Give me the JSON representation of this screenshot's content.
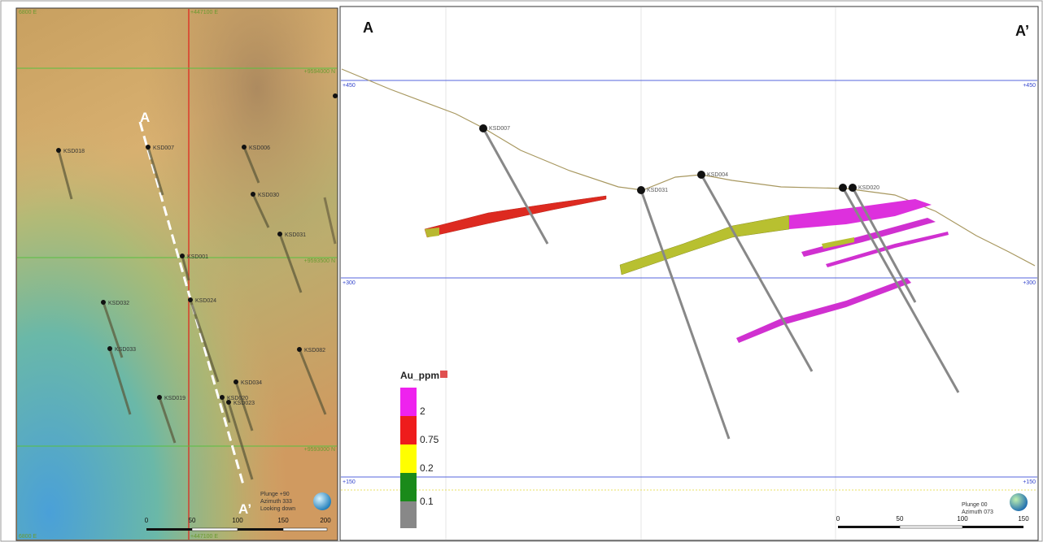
{
  "plan_view": {
    "grid_labels": {
      "top_left": "6800 E",
      "top_center": "+447100 E",
      "bottom_left": "6800 E",
      "bottom_center": "+447100 E",
      "right": [
        "+9594000 N",
        "+9593500 N",
        "+9593000 N"
      ]
    },
    "holes": [
      "KSD018",
      "KSD007",
      "KSD006",
      "KSD030",
      "KSD031",
      "KSD001",
      "KSD032",
      "KSD024",
      "KSD033",
      "KSD082",
      "KSD034",
      "KSD020",
      "KSD023",
      "KSD019"
    ],
    "section_ends": [
      "A",
      "A’"
    ],
    "scale": [
      "0",
      "50",
      "100",
      "150",
      "200"
    ],
    "view": [
      "Plunge +90",
      "Azimuth 333",
      "Looking down"
    ]
  },
  "section_view": {
    "section_ends": [
      "A",
      "A’"
    ],
    "elevations": [
      "+450",
      "+300",
      "+150"
    ],
    "holes": [
      "KSD007",
      "KSD031",
      "KSD004",
      "KSD020"
    ],
    "legend": {
      "title": "Au_ppm",
      "labels": [
        "2",
        "0.75",
        "0.2",
        "0.1"
      ]
    },
    "scale": [
      "0",
      "50",
      "100",
      "150"
    ],
    "view": [
      "Plunge 00",
      "Azimuth 073"
    ]
  }
}
